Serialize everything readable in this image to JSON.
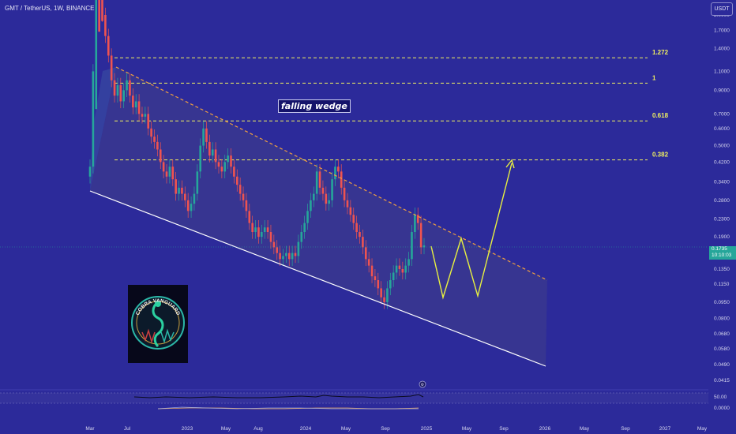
{
  "header": {
    "symbol": "GMT / TetherUS, 1W, BINANCE",
    "currency_button": "USDT"
  },
  "price_tag": {
    "price": "0.1735",
    "countdown": "10:10:03"
  },
  "annotation": {
    "pattern_label": "falling wedge"
  },
  "logo": {
    "text": "COBRA VANGUARD",
    "icon": "cobra-emblem-icon"
  },
  "colors": {
    "background": "#2c2a9a",
    "up_candle": "#26a69a",
    "down_candle": "#ef5350",
    "fib_line": "#f0f060",
    "wedge_upper": "#f0a040",
    "wedge_lower": "#ffffff",
    "projection": "#e8f040"
  },
  "chart_data": {
    "type": "candlestick",
    "title": "GMT / TetherUS, 1W, BINANCE",
    "scale": "log",
    "ylim": [
      0.045,
      2.2
    ],
    "price_axis_ticks": [
      "2.0000",
      "1.7000",
      "1.4000",
      "1.1000",
      "0.9000",
      "0.7000",
      "0.6000",
      "0.5000",
      "0.4200",
      "0.3400",
      "0.2800",
      "0.2300",
      "0.1900",
      "0.1350",
      "0.1150",
      "0.0950",
      "0.0800",
      "0.0680",
      "0.0580",
      "0.0490",
      "0.0415"
    ],
    "time_axis_ticks": [
      "Mar",
      "Jul",
      "2023",
      "May",
      "Aug",
      "2024",
      "May",
      "Sep",
      "2025",
      "May",
      "Sep",
      "2026",
      "May",
      "Sep",
      "2027",
      "May"
    ],
    "fib_levels": [
      {
        "label": "1.272",
        "price": 1.27
      },
      {
        "label": "1",
        "price": 0.97
      },
      {
        "label": "0.618",
        "price": 0.65
      },
      {
        "label": "0.382",
        "price": 0.43
      }
    ],
    "wedge": {
      "upper": [
        [
          "2022-07",
          1.15
        ],
        [
          "2025-09",
          0.115
        ]
      ],
      "lower": [
        [
          "2022-03",
          0.32
        ],
        [
          "2025-09",
          0.048
        ]
      ]
    },
    "projection_path": [
      [
        "2024-12",
        0.16
      ],
      [
        "2025-01",
        0.1
      ],
      [
        "2025-03",
        0.175
      ],
      [
        "2025-05",
        0.1
      ],
      [
        "2025-08",
        0.44
      ]
    ],
    "candles_close": [
      0.4,
      1.1,
      3.5,
      2.5,
      2.0,
      1.6,
      1.3,
      1.0,
      0.85,
      0.95,
      0.8,
      0.9,
      1.0,
      0.85,
      0.75,
      0.8,
      0.7,
      0.68,
      0.7,
      0.6,
      0.55,
      0.52,
      0.48,
      0.42,
      0.38,
      0.36,
      0.4,
      0.35,
      0.3,
      0.32,
      0.3,
      0.28,
      0.25,
      0.27,
      0.3,
      0.38,
      0.5,
      0.6,
      0.52,
      0.45,
      0.48,
      0.42,
      0.4,
      0.38,
      0.42,
      0.45,
      0.4,
      0.36,
      0.33,
      0.3,
      0.28,
      0.25,
      0.22,
      0.2,
      0.21,
      0.19,
      0.2,
      0.21,
      0.2,
      0.18,
      0.17,
      0.16,
      0.15,
      0.155,
      0.16,
      0.15,
      0.16,
      0.155,
      0.18,
      0.2,
      0.22,
      0.25,
      0.28,
      0.3,
      0.38,
      0.32,
      0.3,
      0.27,
      0.28,
      0.35,
      0.4,
      0.38,
      0.32,
      0.28,
      0.26,
      0.24,
      0.22,
      0.2,
      0.19,
      0.17,
      0.15,
      0.14,
      0.125,
      0.12,
      0.11,
      0.1,
      0.095,
      0.11,
      0.12,
      0.13,
      0.14,
      0.135,
      0.13,
      0.14,
      0.15,
      0.2,
      0.24,
      0.22,
      0.17,
      0.1735
    ],
    "rsi_panel": {
      "ticks": [
        "50.00",
        "0.0000"
      ]
    }
  }
}
